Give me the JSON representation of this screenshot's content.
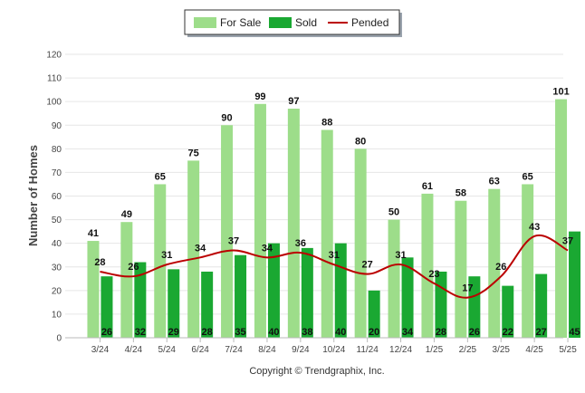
{
  "chart_data": {
    "type": "bar",
    "categories": [
      "3/24",
      "4/24",
      "5/24",
      "6/24",
      "7/24",
      "8/24",
      "9/24",
      "10/24",
      "11/24",
      "12/24",
      "1/25",
      "2/25",
      "3/25",
      "4/25",
      "5/25"
    ],
    "series": [
      {
        "name": "For Sale",
        "type": "bar",
        "color": "#9ddd8a",
        "values": [
          41,
          49,
          65,
          75,
          90,
          99,
          97,
          88,
          80,
          50,
          61,
          58,
          63,
          65,
          101
        ]
      },
      {
        "name": "Sold",
        "type": "bar",
        "color": "#1aa832",
        "values": [
          26,
          32,
          29,
          28,
          35,
          40,
          38,
          40,
          20,
          34,
          28,
          26,
          22,
          27,
          45
        ]
      },
      {
        "name": "Pended",
        "type": "line",
        "color": "#bb0000",
        "values": [
          28,
          26,
          31,
          34,
          37,
          34,
          36,
          31,
          27,
          31,
          23,
          17,
          26,
          43,
          37
        ]
      }
    ],
    "ylabel": "Number of Homes",
    "xlabel": "",
    "ylim": [
      0,
      120
    ],
    "yticks": [
      0,
      10,
      20,
      30,
      40,
      50,
      60,
      70,
      80,
      90,
      100,
      110,
      120
    ],
    "grid": true,
    "legend_position": "top-center"
  },
  "footer": {
    "copyright": "Copyright © Trendgraphix, Inc."
  }
}
